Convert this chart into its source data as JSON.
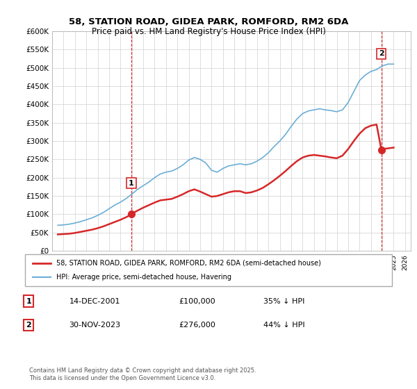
{
  "title1": "58, STATION ROAD, GIDEA PARK, ROMFORD, RM2 6DA",
  "title2": "Price paid vs. HM Land Registry's House Price Index (HPI)",
  "ylabel_ticks": [
    "£0",
    "£50K",
    "£100K",
    "£150K",
    "£200K",
    "£250K",
    "£300K",
    "£350K",
    "£400K",
    "£450K",
    "£500K",
    "£550K",
    "£600K"
  ],
  "ylim": [
    0,
    600000
  ],
  "xlim_start": 1995.0,
  "xlim_end": 2026.5,
  "legend_line1": "58, STATION ROAD, GIDEA PARK, ROMFORD, RM2 6DA (semi-detached house)",
  "legend_line2": "HPI: Average price, semi-detached house, Havering",
  "annotation1_label": "1",
  "annotation1_date": "14-DEC-2001",
  "annotation1_price": "£100,000",
  "annotation1_hpi": "35% ↓ HPI",
  "annotation2_label": "2",
  "annotation2_date": "30-NOV-2023",
  "annotation2_price": "£276,000",
  "annotation2_hpi": "44% ↓ HPI",
  "footnote": "Contains HM Land Registry data © Crown copyright and database right 2025.\nThis data is licensed under the Open Government Licence v3.0.",
  "hpi_color": "#6baed6",
  "price_color": "#d62728",
  "vline_color": "#d62728",
  "marker1_x": 2001.95,
  "marker1_y": 100000,
  "marker2_x": 2023.92,
  "marker2_y": 276000,
  "hpi_x": [
    1995.5,
    1996.0,
    1996.5,
    1997.0,
    1997.5,
    1998.0,
    1998.5,
    1999.0,
    1999.5,
    2000.0,
    2000.5,
    2001.0,
    2001.5,
    2002.0,
    2002.5,
    2003.0,
    2003.5,
    2004.0,
    2004.5,
    2005.0,
    2005.5,
    2006.0,
    2006.5,
    2007.0,
    2007.5,
    2008.0,
    2008.5,
    2009.0,
    2009.5,
    2010.0,
    2010.5,
    2011.0,
    2011.5,
    2012.0,
    2012.5,
    2013.0,
    2013.5,
    2014.0,
    2014.5,
    2015.0,
    2015.5,
    2016.0,
    2016.5,
    2017.0,
    2017.5,
    2018.0,
    2018.5,
    2019.0,
    2019.5,
    2020.0,
    2020.5,
    2021.0,
    2021.5,
    2022.0,
    2022.5,
    2023.0,
    2023.5,
    2024.0,
    2024.5,
    2025.0
  ],
  "hpi_y": [
    70000,
    71000,
    73000,
    76000,
    80000,
    85000,
    90000,
    97000,
    105000,
    115000,
    125000,
    133000,
    143000,
    155000,
    168000,
    178000,
    188000,
    200000,
    210000,
    215000,
    218000,
    225000,
    235000,
    248000,
    255000,
    250000,
    240000,
    220000,
    215000,
    225000,
    232000,
    235000,
    238000,
    235000,
    238000,
    245000,
    255000,
    268000,
    285000,
    300000,
    318000,
    340000,
    360000,
    375000,
    382000,
    385000,
    388000,
    385000,
    383000,
    380000,
    385000,
    405000,
    435000,
    465000,
    480000,
    490000,
    495000,
    505000,
    510000,
    510000
  ],
  "price_x": [
    1995.5,
    1996.0,
    1996.5,
    1997.0,
    1997.5,
    1998.0,
    1998.5,
    1999.0,
    1999.5,
    2000.0,
    2000.5,
    2001.0,
    2001.5,
    2001.95,
    2002.0,
    2002.5,
    2003.0,
    2003.5,
    2004.0,
    2004.5,
    2005.0,
    2005.5,
    2006.0,
    2006.5,
    2007.0,
    2007.5,
    2008.0,
    2008.5,
    2009.0,
    2009.5,
    2010.0,
    2010.5,
    2011.0,
    2011.5,
    2012.0,
    2012.5,
    2013.0,
    2013.5,
    2014.0,
    2014.5,
    2015.0,
    2015.5,
    2016.0,
    2016.5,
    2017.0,
    2017.5,
    2018.0,
    2018.5,
    2019.0,
    2019.5,
    2020.0,
    2020.5,
    2021.0,
    2021.5,
    2022.0,
    2022.5,
    2023.0,
    2023.5,
    2023.92,
    2024.0,
    2024.5,
    2025.0
  ],
  "price_y": [
    45000,
    46000,
    47000,
    49000,
    52000,
    55000,
    58000,
    62000,
    67000,
    73000,
    79000,
    85000,
    92000,
    100000,
    102000,
    110000,
    118000,
    125000,
    132000,
    138000,
    140000,
    142000,
    148000,
    155000,
    163000,
    168000,
    162000,
    155000,
    148000,
    150000,
    155000,
    160000,
    163000,
    163000,
    158000,
    160000,
    165000,
    172000,
    182000,
    193000,
    205000,
    218000,
    232000,
    245000,
    255000,
    260000,
    262000,
    260000,
    258000,
    255000,
    253000,
    260000,
    278000,
    300000,
    320000,
    335000,
    342000,
    345000,
    276000,
    278000,
    280000,
    282000
  ]
}
